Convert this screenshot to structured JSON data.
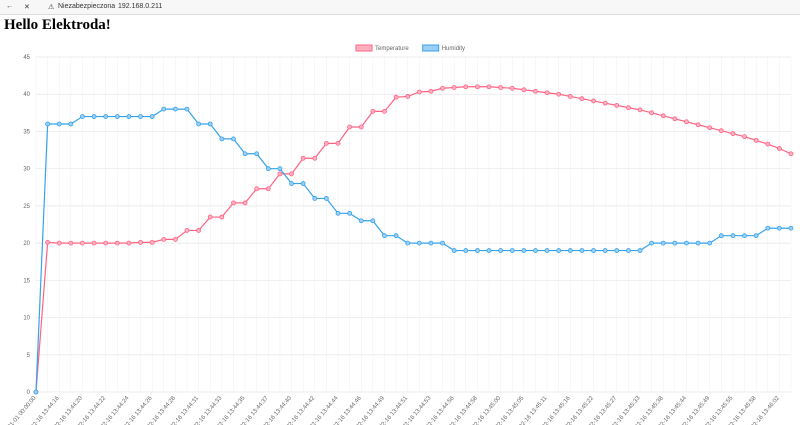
{
  "browser": {
    "security": "Niezabezpieczona",
    "url": "192.168.0.211"
  },
  "heading": "Hello Elektroda!",
  "chart_data": {
    "type": "line",
    "categories": [
      "01-01 00:00:00",
      null,
      "02-16 13:44:16",
      null,
      "02-16 13:44:20",
      null,
      "02-16 13:44:22",
      null,
      "02-16 13:44:24",
      null,
      "02-16 13:44:26",
      null,
      "02-16 13:44:28",
      null,
      "02-16 13:44:31",
      null,
      "02-16 13:44:33",
      null,
      "02-16 13:44:35",
      null,
      "02-16 13:44:37",
      null,
      "02-16 13:44:40",
      null,
      "02-16 13:44:42",
      null,
      "02-16 13:44:44",
      null,
      "02-16 13:44:46",
      null,
      "02-16 13:44:49",
      null,
      "02-16 13:44:51",
      null,
      "02-16 13:44:53",
      null,
      "02-16 13:44:56",
      null,
      "02-16 13:44:58",
      null,
      "02-16 13:45:00",
      null,
      "02-16 13:45:05",
      null,
      "02-16 13:45:11",
      null,
      "02-16 13:45:16",
      null,
      "02-16 13:45:22",
      null,
      "02-16 13:45:27",
      null,
      "02-16 13:45:33",
      null,
      "02-16 13:45:38",
      null,
      "02-16 13:45:44",
      null,
      "02-16 13:45:49",
      null,
      "02-16 13:45:55",
      null,
      "02-16 13:45:58",
      null,
      "02-16 13:46:02",
      null
    ],
    "series": [
      {
        "name": "Temperature",
        "color": "#ff6384",
        "fill": "#ffb1c1",
        "values": [
          0,
          20.1,
          20,
          20,
          20,
          20,
          20,
          20,
          20,
          20.1,
          20.1,
          20.5,
          20.5,
          21.7,
          21.7,
          23.5,
          23.5,
          25.4,
          25.4,
          27.3,
          27.3,
          29.3,
          29.3,
          31.4,
          31.4,
          33.4,
          33.4,
          35.6,
          35.6,
          37.7,
          37.7,
          39.6,
          39.7,
          40.3,
          40.4,
          40.8,
          40.9,
          41,
          41,
          41,
          40.9,
          40.8,
          40.6,
          40.4,
          40.2,
          40,
          39.7,
          39.4,
          39.1,
          38.8,
          38.5,
          38.2,
          37.9,
          37.5,
          37.1,
          36.7,
          36.3,
          35.9,
          35.5,
          35.1,
          34.7,
          34.3,
          33.8,
          33.3,
          32.7,
          32
        ]
      },
      {
        "name": "Humidity",
        "color": "#36a2eb",
        "fill": "#9ad0f5",
        "values": [
          0,
          36,
          36,
          36,
          37,
          37,
          37,
          37,
          37,
          37,
          37,
          38,
          38,
          38,
          36,
          36,
          34,
          34,
          32,
          32,
          30,
          30,
          28,
          28,
          26,
          26,
          24,
          24,
          23,
          23,
          21,
          21,
          20,
          20,
          20,
          20,
          19,
          19,
          19,
          19,
          19,
          19,
          19,
          19,
          19,
          19,
          19,
          19,
          19,
          19,
          19,
          19,
          19,
          20,
          20,
          20,
          20,
          20,
          20,
          21,
          21,
          21,
          21,
          22,
          22,
          22
        ]
      }
    ],
    "ylim": [
      0,
      45
    ],
    "yticks": [
      0,
      5,
      10,
      15,
      20,
      25,
      30,
      35,
      40,
      45
    ],
    "grid": true,
    "legend": "top"
  }
}
